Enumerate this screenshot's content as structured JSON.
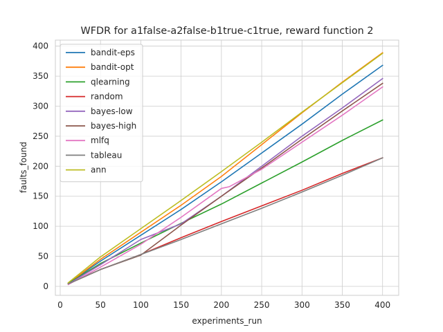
{
  "chart_data": {
    "type": "line",
    "title": "WFDR for a1false-a2false-b1true-c1true, reward function 2",
    "xlabel": "experiments_run",
    "ylabel": "faults_found",
    "xlim": [
      -6,
      420
    ],
    "ylim": [
      -15,
      410
    ],
    "xticks": [
      0,
      50,
      100,
      150,
      200,
      250,
      300,
      350,
      400
    ],
    "yticks": [
      0,
      50,
      100,
      150,
      200,
      250,
      300,
      350,
      400
    ],
    "grid": true,
    "legend_position": "top-left",
    "series": [
      {
        "name": "bandit-eps",
        "color": "#1f77b4",
        "x": [
          10,
          50,
          100,
          150,
          200,
          250,
          300,
          350,
          400
        ],
        "y": [
          5,
          42,
          85,
          128,
          174,
          222,
          270,
          320,
          368
        ]
      },
      {
        "name": "bandit-opt",
        "color": "#ff7f0e",
        "x": [
          10,
          50,
          100,
          150,
          200,
          250,
          300,
          350,
          400
        ],
        "y": [
          5,
          45,
          90,
          135,
          183,
          236,
          289,
          340,
          389
        ]
      },
      {
        "name": "qlearning",
        "color": "#2ca02c",
        "x": [
          10,
          50,
          100,
          150,
          200,
          250,
          300,
          350,
          400
        ],
        "y": [
          5,
          38,
          72,
          105,
          137,
          172,
          207,
          243,
          277
        ]
      },
      {
        "name": "random",
        "color": "#d62728",
        "x": [
          10,
          50,
          100,
          150,
          200,
          250,
          300,
          350,
          400
        ],
        "y": [
          4,
          28,
          53,
          81,
          108,
          134,
          160,
          188,
          214
        ]
      },
      {
        "name": "bayes-low",
        "color": "#9467bd",
        "x": [
          10,
          50,
          100,
          150,
          200,
          250,
          300,
          350,
          400
        ],
        "y": [
          4,
          36,
          78,
          104,
          150,
          200,
          250,
          297,
          346
        ]
      },
      {
        "name": "bayes-high",
        "color": "#8c564b",
        "x": [
          10,
          50,
          100,
          150,
          200,
          250,
          300,
          350,
          400
        ],
        "y": [
          4,
          28,
          52,
          102,
          150,
          197,
          245,
          292,
          338
        ]
      },
      {
        "name": "mlfq",
        "color": "#e377c2",
        "x": [
          10,
          50,
          100,
          150,
          200,
          210,
          250,
          300,
          350,
          400
        ],
        "y": [
          3,
          32,
          70,
          115,
          163,
          166,
          195,
          240,
          285,
          332
        ]
      },
      {
        "name": "tableau",
        "color": "#7f7f7f",
        "x": [
          10,
          50,
          100,
          150,
          200,
          250,
          300,
          350,
          400
        ],
        "y": [
          4,
          28,
          53,
          78,
          104,
          130,
          157,
          185,
          214
        ]
      },
      {
        "name": "ann",
        "color": "#bcbd22",
        "x": [
          10,
          50,
          100,
          150,
          200,
          250,
          300,
          350,
          400
        ],
        "y": [
          6,
          49,
          96,
          143,
          191,
          240,
          290,
          339,
          388
        ]
      }
    ]
  }
}
